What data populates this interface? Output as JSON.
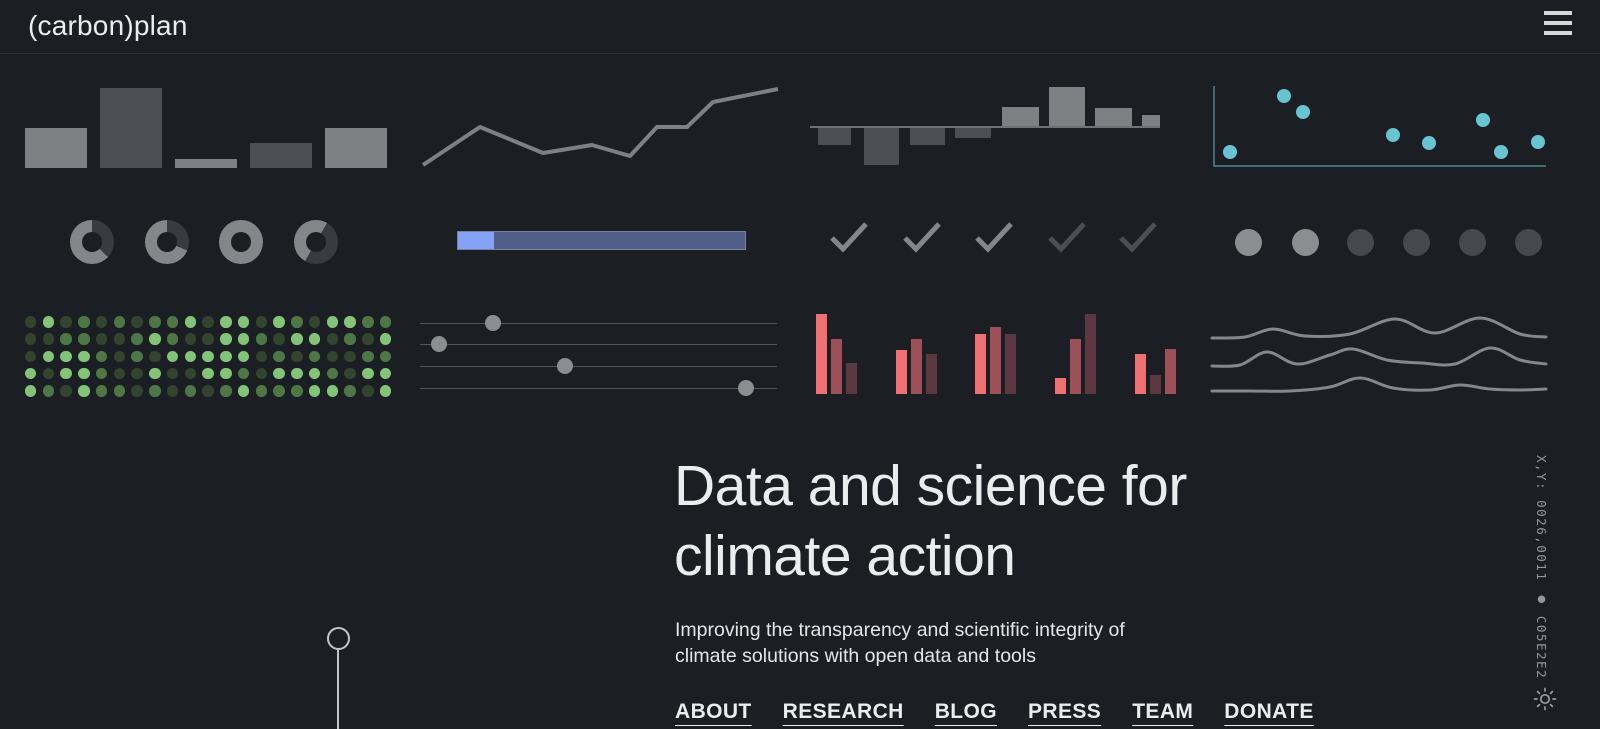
{
  "header": {
    "logo": "(carbon)plan",
    "menu_icon": "hamburger"
  },
  "hero": {
    "title": "Data and science for climate action",
    "subtitle": "Improving the transparency and scientific integrity of climate solutions with open data and tools",
    "nav": [
      "ABOUT",
      "RESEARCH",
      "BLOG",
      "PRESS",
      "TEAM",
      "DONATE"
    ]
  },
  "status_bar": {
    "text": "X,Y: 0026,0011 ● C05E2E2"
  },
  "colors": {
    "background": "#1b1e23",
    "text": "#ebeced",
    "grey_light": "#7e8084",
    "grey_mid": "#6f7176",
    "grey_dark": "#4b4e54",
    "grey_dot_dark": "#45484e",
    "donut_light": "#84868a",
    "donut_dark": "#383b41",
    "teal": "#68c4d2",
    "teal_axis": "#64b9c4",
    "blue": "#85a2f7",
    "blue_track": "#515e88",
    "red_bright": "#f07071",
    "red_mid": "#9d5057",
    "red_dark": "#5c3940",
    "green_bright": "#84c478",
    "green_mid": "#4d7845",
    "green_dark": "#31452e",
    "knob": "#8b8d90",
    "wave": "#85878b",
    "pin": "#c3c5c8",
    "status_text": "#94979c"
  },
  "tiles": {
    "bars": {
      "type": "bar",
      "values": [
        40,
        80,
        9,
        25,
        40
      ],
      "tones": [
        1,
        0,
        1,
        0,
        1
      ]
    },
    "line": {
      "type": "line",
      "points": [
        [
          9,
          87
        ],
        [
          66,
          49
        ],
        [
          129,
          75
        ],
        [
          178,
          67
        ],
        [
          216,
          78
        ],
        [
          243,
          49
        ],
        [
          273,
          49
        ],
        [
          299,
          24
        ],
        [
          364,
          11
        ]
      ]
    },
    "diverging": {
      "type": "bar-diverging",
      "baseline": 49,
      "down": [
        [
          18,
          33,
          18
        ],
        [
          64,
          35,
          38
        ],
        [
          110,
          35,
          18
        ],
        [
          155,
          36,
          11
        ]
      ],
      "up": [
        [
          202,
          37,
          20
        ],
        [
          249,
          36,
          40
        ],
        [
          295,
          37,
          19
        ],
        [
          342,
          28,
          12
        ]
      ]
    },
    "scatter": {
      "type": "scatter",
      "points": [
        [
          40,
          74
        ],
        [
          94,
          18
        ],
        [
          113,
          34
        ],
        [
          203,
          57
        ],
        [
          239,
          65
        ],
        [
          293,
          42
        ],
        [
          311,
          74
        ],
        [
          348,
          64
        ]
      ]
    },
    "donuts": {
      "type": "donut",
      "segments": [
        {
          "from": 0,
          "dark_sweep": 133
        },
        {
          "from": 0,
          "dark_sweep": 113
        },
        {
          "from": 0,
          "dark_sweep": 0
        },
        {
          "from": 30,
          "dark_sweep": 180
        }
      ],
      "centers_x": [
        68,
        143,
        217,
        292
      ]
    },
    "progress": {
      "type": "progress",
      "fill_ratio": 0.125
    },
    "checks": {
      "type": "checkmarks",
      "tones": [
        1,
        1,
        1,
        0,
        0
      ],
      "centers_x": [
        49,
        122,
        194,
        267,
        338
      ]
    },
    "dots": {
      "type": "dots",
      "tones": [
        1,
        1,
        0,
        0,
        0,
        0
      ],
      "centers_x": [
        58,
        115,
        170,
        226,
        282,
        338
      ]
    },
    "dotgrid": {
      "type": "dot-matrix",
      "rows": [
        "020101011202202102211",
        "001100121002210220102",
        "022210102222201010011",
        "202210020022102221022",
        "210211010101211122102"
      ]
    },
    "sliders": {
      "type": "sliders",
      "line_y": [
        20,
        41,
        63,
        85
      ],
      "knob_x": [
        79,
        25,
        151,
        332
      ]
    },
    "redbars": {
      "type": "bar-grouped",
      "group_x": [
        16,
        96,
        175,
        255,
        335
      ],
      "groups": [
        [
          80,
          55,
          31
        ],
        [
          44,
          55,
          40
        ],
        [
          60,
          67,
          60
        ],
        [
          16,
          55,
          80
        ],
        [
          40,
          19,
          45
        ]
      ],
      "tones": [
        [
          2,
          1,
          0
        ],
        [
          2,
          1,
          0
        ],
        [
          2,
          1,
          0
        ],
        [
          2,
          1,
          0
        ],
        [
          2,
          0,
          1
        ]
      ]
    },
    "waves": {
      "type": "ridgeline",
      "lines": [
        [
          [
            22,
            35
          ],
          [
            55,
            34
          ],
          [
            83,
            26
          ],
          [
            115,
            33
          ],
          [
            160,
            31
          ],
          [
            205,
            16
          ],
          [
            245,
            30
          ],
          [
            290,
            15
          ],
          [
            330,
            31
          ],
          [
            356,
            34
          ]
        ],
        [
          [
            22,
            63
          ],
          [
            50,
            62
          ],
          [
            77,
            49
          ],
          [
            107,
            61
          ],
          [
            140,
            52
          ],
          [
            163,
            46
          ],
          [
            197,
            57
          ],
          [
            232,
            60
          ],
          [
            265,
            61
          ],
          [
            300,
            45
          ],
          [
            330,
            57
          ],
          [
            356,
            61
          ]
        ],
        [
          [
            22,
            88
          ],
          [
            60,
            88
          ],
          [
            100,
            88
          ],
          [
            140,
            84
          ],
          [
            170,
            75
          ],
          [
            203,
            85
          ],
          [
            240,
            87
          ],
          [
            270,
            82
          ],
          [
            300,
            86
          ],
          [
            330,
            87
          ],
          [
            356,
            86
          ]
        ]
      ]
    }
  }
}
